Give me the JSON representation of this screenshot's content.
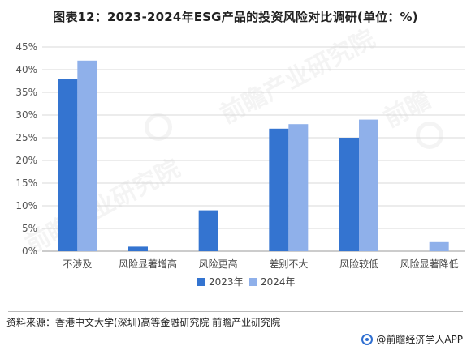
{
  "title": "图表12：2023-2024年ESG产品的投资风险对比调研(单位：%)",
  "source": "资料来源：香港中文大学(深圳)高等金融研究院 前瞻产业研究院",
  "brand": "@前瞻经济学人APP",
  "watermark_text": "前瞻产业研究院",
  "colors": {
    "s2023": "#3474d0",
    "s2024": "#8fb0ea",
    "grid": "#d9d9d9",
    "axis": "#999999"
  },
  "chart_data": {
    "type": "bar",
    "title": "图表12：2023-2024年ESG产品的投资风险对比调研(单位：%)",
    "xlabel": "",
    "ylabel": "",
    "categories": [
      "不涉及",
      "风险显著增高",
      "风险更高",
      "差别不大",
      "风险较低",
      "风险显著降低"
    ],
    "series": [
      {
        "name": "2023年",
        "values": [
          38,
          1,
          9,
          27,
          25,
          0
        ]
      },
      {
        "name": "2024年",
        "values": [
          42,
          0,
          0,
          28,
          29,
          2
        ]
      }
    ],
    "ylim": [
      0,
      45
    ],
    "yticks": [
      "0%",
      "5%",
      "10%",
      "15%",
      "20%",
      "25%",
      "30%",
      "35%",
      "40%",
      "45%"
    ],
    "grid": "horizontal",
    "legend": "bottom-center"
  }
}
